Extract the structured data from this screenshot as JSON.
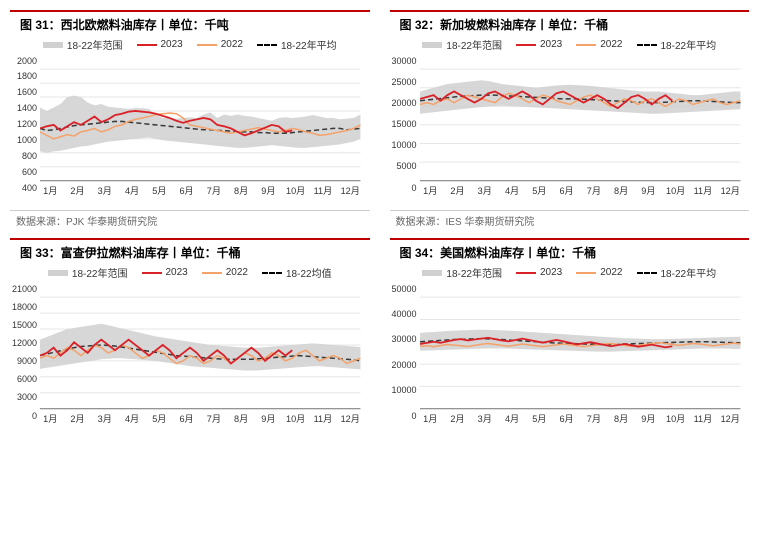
{
  "colors": {
    "title_border": "#c00000",
    "range_fill": "#d0d0d0",
    "series_2023": "#da2128",
    "series_2022": "#f4a26a",
    "series_avg": "#3a3a3a",
    "grid": "#e6e6e6",
    "axis": "#888888",
    "bg": "#ffffff"
  },
  "months": [
    "1月",
    "2月",
    "3月",
    "4月",
    "5月",
    "6月",
    "7月",
    "8月",
    "9月",
    "10月",
    "11月",
    "12月"
  ],
  "legend_labels": {
    "range": "18-22年范围",
    "s2023": "2023",
    "s2022": "2022",
    "avg_default": "18-22年平均",
    "avg_alt": "18-22均值"
  },
  "panels": [
    {
      "id": "p31",
      "title": "图 31：西北欧燃料油库存丨单位：千吨",
      "source": "数据来源：PJK 华泰期货研究院",
      "avg_label": "18-22年平均",
      "ylim": [
        400,
        2000
      ],
      "ytick_step": 200,
      "range_hi": [
        1450,
        1400,
        1450,
        1500,
        1600,
        1620,
        1600,
        1520,
        1480,
        1500,
        1460,
        1450,
        1440,
        1430,
        1440,
        1440,
        1430,
        1350,
        1300,
        1300,
        1290,
        1300,
        1310,
        1300,
        1350,
        1380,
        1300,
        1350,
        1330,
        1350,
        1330,
        1320,
        1300,
        1280,
        1260,
        1300,
        1310,
        1300,
        1310,
        1320,
        1340,
        1320,
        1300,
        1300,
        1280,
        1290,
        1300,
        1350
      ],
      "range_lo": [
        820,
        800,
        820,
        830,
        850,
        870,
        890,
        900,
        920,
        940,
        960,
        970,
        980,
        990,
        1000,
        1010,
        1020,
        1000,
        980,
        970,
        960,
        950,
        940,
        930,
        920,
        910,
        900,
        890,
        880,
        870,
        870,
        880,
        890,
        900,
        910,
        900,
        890,
        880,
        870,
        870,
        880,
        890,
        900,
        910,
        920,
        940,
        960,
        1000
      ],
      "avg": [
        1150,
        1120,
        1130,
        1150,
        1170,
        1190,
        1200,
        1210,
        1220,
        1230,
        1240,
        1250,
        1250,
        1240,
        1230,
        1220,
        1210,
        1200,
        1190,
        1180,
        1170,
        1160,
        1150,
        1140,
        1130,
        1130,
        1120,
        1120,
        1110,
        1100,
        1100,
        1100,
        1090,
        1090,
        1080,
        1080,
        1080,
        1090,
        1100,
        1110,
        1120,
        1130,
        1140,
        1150,
        1150,
        1130,
        1140,
        1150
      ],
      "s2022": [
        1100,
        1050,
        1000,
        1030,
        1060,
        1040,
        1100,
        1120,
        1150,
        1100,
        1130,
        1180,
        1200,
        1250,
        1280,
        1300,
        1320,
        1350,
        1360,
        1370,
        1360,
        1300,
        1200,
        1180,
        1160,
        1140,
        1120,
        1100,
        1080,
        1100,
        1120,
        1140,
        1160,
        1140,
        1120,
        1100,
        1120,
        1150,
        1130,
        1100,
        1080,
        1050,
        1060,
        1080,
        1100,
        1120,
        1150,
        1200
      ],
      "s2023": [
        1150,
        1180,
        1200,
        1120,
        1180,
        1240,
        1200,
        1260,
        1320,
        1240,
        1280,
        1340,
        1360,
        1390,
        1400,
        1390,
        1380,
        1360,
        1330,
        1300,
        1260,
        1230,
        1260,
        1280,
        1300,
        1280,
        1200,
        1180,
        1150,
        1100,
        1050,
        1080,
        1120,
        1160,
        1200,
        1180,
        1100,
        1120,
        null,
        null,
        null,
        null,
        null,
        null,
        null,
        null,
        null,
        null
      ]
    },
    {
      "id": "p32",
      "title": "图 32：新加坡燃料油库存丨单位：千桶",
      "source": "数据来源：IES 华泰期货研究院",
      "avg_label": "18-22年平均",
      "ylim": [
        0,
        30000
      ],
      "ytick_step": 5000,
      "range_hi": [
        24000,
        24500,
        25000,
        25500,
        26000,
        26200,
        26400,
        26600,
        26800,
        27000,
        26800,
        26400,
        26000,
        25800,
        25600,
        25400,
        25200,
        25000,
        25200,
        25400,
        25600,
        25700,
        25800,
        25700,
        25600,
        25500,
        25300,
        25100,
        24900,
        24700,
        24500,
        24300,
        24100,
        24000,
        24000,
        24000,
        23800,
        23600,
        23400,
        23200,
        23000,
        23000,
        23200,
        23400,
        23600,
        23800,
        24000,
        24000
      ],
      "range_lo": [
        18000,
        18200,
        18400,
        18600,
        18800,
        19000,
        19200,
        19400,
        19600,
        19800,
        20000,
        20100,
        20200,
        20100,
        20000,
        19900,
        19800,
        19700,
        19600,
        19500,
        19400,
        19300,
        19200,
        19100,
        19000,
        18900,
        18800,
        18700,
        18600,
        18500,
        18400,
        18300,
        18200,
        18100,
        18000,
        18000,
        18100,
        18200,
        18300,
        18400,
        18500,
        18600,
        18700,
        18800,
        18900,
        19000,
        19100,
        19200
      ],
      "avg": [
        21500,
        21700,
        21900,
        22100,
        22300,
        22500,
        22700,
        22800,
        22900,
        23000,
        23000,
        23000,
        22900,
        22800,
        22700,
        22600,
        22500,
        22400,
        22300,
        22200,
        22100,
        22000,
        22000,
        22000,
        21900,
        21800,
        21700,
        21600,
        21500,
        21400,
        21300,
        21200,
        21100,
        21000,
        21000,
        21000,
        21100,
        21200,
        21300,
        21400,
        21500,
        21500,
        21400,
        21300,
        21200,
        21100,
        21000,
        21000
      ],
      "s2022": [
        20500,
        21000,
        20500,
        21500,
        22000,
        21000,
        22000,
        23000,
        22500,
        22000,
        21500,
        21000,
        22500,
        23500,
        23000,
        22000,
        21000,
        22000,
        23000,
        22500,
        21500,
        21000,
        20500,
        21500,
        22500,
        23000,
        22000,
        21000,
        20000,
        21000,
        22000,
        21500,
        20500,
        21500,
        22000,
        21000,
        20000,
        21000,
        22000,
        21500,
        20500,
        21000,
        21500,
        22000,
        21000,
        20500,
        21000,
        21500
      ],
      "s2023": [
        22000,
        22500,
        23000,
        21500,
        23000,
        24000,
        23000,
        22000,
        21000,
        22000,
        23500,
        24000,
        23000,
        22000,
        23000,
        24000,
        23000,
        21500,
        20500,
        22000,
        23500,
        24000,
        23000,
        22000,
        21000,
        22000,
        23000,
        22000,
        20500,
        19500,
        21000,
        22500,
        23000,
        22000,
        20500,
        22000,
        23000,
        21500,
        null,
        null,
        null,
        null,
        null,
        null,
        null,
        null,
        null,
        null
      ]
    },
    {
      "id": "p33",
      "title": "图 33：富查伊拉燃料油库存丨单位：千桶",
      "source": "",
      "avg_label": "18-22均值",
      "ylim": [
        0,
        21000
      ],
      "ytick_step": 3000,
      "range_hi": [
        13000,
        13500,
        14000,
        14500,
        15000,
        15200,
        15400,
        15600,
        15800,
        16000,
        15700,
        15400,
        15100,
        14800,
        14500,
        14200,
        13900,
        13600,
        13400,
        13200,
        13000,
        12800,
        12600,
        12400,
        12200,
        12000,
        11900,
        11800,
        11700,
        11600,
        11500,
        11500,
        11500,
        11600,
        11700,
        11800,
        11900,
        12000,
        12100,
        12200,
        12300,
        12200,
        12100,
        12000,
        11900,
        11800,
        11700,
        11600
      ],
      "range_lo": [
        7500,
        7700,
        7900,
        8100,
        8300,
        8500,
        8700,
        8900,
        9100,
        9300,
        9400,
        9500,
        9500,
        9400,
        9300,
        9200,
        9100,
        9000,
        8800,
        8600,
        8400,
        8200,
        8000,
        7900,
        7800,
        7700,
        7600,
        7500,
        7400,
        7300,
        7200,
        7200,
        7200,
        7300,
        7400,
        7500,
        7600,
        7700,
        7800,
        7900,
        8000,
        8000,
        7900,
        7800,
        7700,
        7600,
        7500,
        7400
      ],
      "avg": [
        10000,
        10300,
        10600,
        10900,
        11200,
        11500,
        11700,
        11800,
        11900,
        12000,
        11900,
        11800,
        11600,
        11400,
        11200,
        11000,
        10800,
        10600,
        10400,
        10200,
        10000,
        9900,
        9800,
        9700,
        9600,
        9500,
        9400,
        9300,
        9300,
        9300,
        9300,
        9300,
        9400,
        9500,
        9600,
        9700,
        9800,
        9900,
        10000,
        9900,
        9800,
        9700,
        9600,
        9500,
        9400,
        9300,
        9200,
        9000
      ],
      "s2022": [
        9500,
        10000,
        9500,
        10500,
        11500,
        11000,
        10000,
        11000,
        12000,
        11500,
        10500,
        11000,
        12000,
        11500,
        10500,
        9500,
        10000,
        11000,
        10500,
        9500,
        8500,
        9000,
        10000,
        9500,
        8500,
        9000,
        10000,
        9500,
        8500,
        9500,
        10500,
        10000,
        9000,
        9500,
        10500,
        10000,
        9000,
        9500,
        10500,
        11000,
        10000,
        9000,
        9500,
        10000,
        9500,
        8500,
        9000,
        9500
      ],
      "s2023": [
        10000,
        10500,
        11500,
        10000,
        11000,
        12500,
        11500,
        10500,
        12000,
        13000,
        12000,
        11000,
        12000,
        13000,
        12000,
        11000,
        10000,
        11000,
        12000,
        11000,
        9500,
        10500,
        11500,
        10500,
        9000,
        10000,
        11000,
        10000,
        8500,
        9500,
        10500,
        11500,
        10500,
        9000,
        10000,
        11000,
        10000,
        11000,
        null,
        null,
        null,
        null,
        null,
        null,
        null,
        null,
        null,
        null
      ]
    },
    {
      "id": "p34",
      "title": "图 34：美国燃料油库存丨单位：千桶",
      "source": "",
      "avg_label": "18-22年平均",
      "ylim": [
        0,
        50000
      ],
      "ytick_step": 10000,
      "range_hi": [
        34000,
        34200,
        34400,
        34600,
        34800,
        35000,
        35100,
        35200,
        35300,
        35400,
        35300,
        35200,
        35100,
        35000,
        34800,
        34600,
        34400,
        34200,
        34000,
        33800,
        33600,
        33400,
        33200,
        33000,
        32800,
        32600,
        32400,
        32200,
        32000,
        31800,
        31600,
        31500,
        31400,
        31300,
        31200,
        31200,
        31200,
        31300,
        31400,
        31500,
        31600,
        31700,
        31800,
        31900,
        32000,
        32100,
        32200,
        32300
      ],
      "range_lo": [
        26000,
        26100,
        26200,
        26300,
        26400,
        26500,
        26600,
        26700,
        26800,
        26900,
        27000,
        27000,
        27000,
        26900,
        26800,
        26700,
        26600,
        26500,
        26400,
        26300,
        26200,
        26100,
        26000,
        25900,
        25800,
        25700,
        25600,
        25600,
        25600,
        25700,
        25800,
        25900,
        26000,
        26100,
        26200,
        26300,
        26400,
        26500,
        26600,
        26700,
        26800,
        26900,
        27000,
        27000,
        27000,
        26900,
        26800,
        26700
      ],
      "avg": [
        30000,
        30200,
        30400,
        30600,
        30800,
        31000,
        31100,
        31200,
        31300,
        31400,
        31300,
        31200,
        31000,
        30800,
        30600,
        30400,
        30200,
        30000,
        29800,
        29600,
        29400,
        29300,
        29200,
        29100,
        29000,
        28900,
        28800,
        28800,
        28800,
        28900,
        29000,
        29100,
        29200,
        29300,
        29400,
        29500,
        29600,
        29700,
        29800,
        29900,
        30000,
        30000,
        30000,
        29900,
        29800,
        29700,
        29600,
        29500
      ],
      "s2022": [
        28000,
        28200,
        27800,
        28300,
        28800,
        28500,
        28200,
        27900,
        28400,
        28900,
        29200,
        28800,
        28400,
        28000,
        28500,
        29000,
        28600,
        28200,
        27800,
        28200,
        28600,
        29000,
        28600,
        28200,
        27800,
        28200,
        28600,
        29000,
        29200,
        28800,
        28400,
        28000,
        28400,
        28800,
        29200,
        29600,
        29200,
        28800,
        28400,
        28800,
        29200,
        29000,
        28600,
        28200,
        28600,
        29000,
        29400,
        29000
      ],
      "s2023": [
        29000,
        29500,
        30000,
        29500,
        30200,
        30800,
        31200,
        30600,
        31000,
        31400,
        31800,
        31200,
        30600,
        30200,
        30800,
        31400,
        30800,
        30200,
        29600,
        30200,
        30800,
        30200,
        29500,
        28800,
        29300,
        29800,
        29200,
        28600,
        28000,
        28500,
        29000,
        28400,
        27800,
        28200,
        28700,
        28100,
        27500,
        28000,
        null,
        null,
        null,
        null,
        null,
        null,
        null,
        null,
        null,
        null
      ]
    }
  ]
}
